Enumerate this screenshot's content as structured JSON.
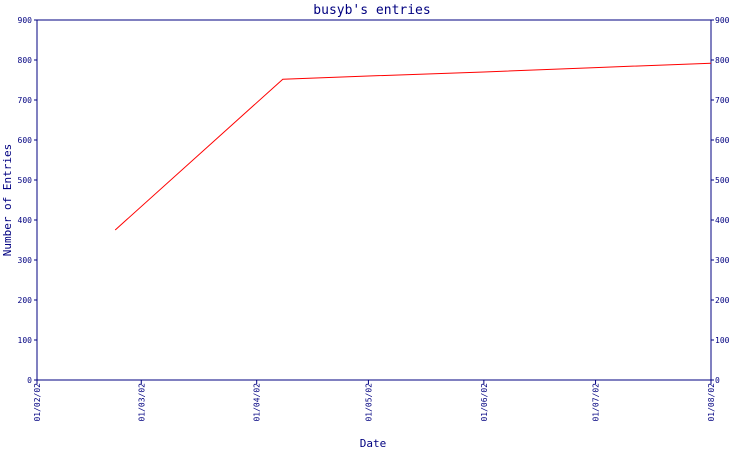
{
  "chart_data": {
    "type": "line",
    "title": "busyb's entries",
    "xlabel": "Date",
    "ylabel": "Number of Entries",
    "ylim": [
      0,
      900
    ],
    "yticks": [
      0,
      100,
      200,
      300,
      400,
      500,
      600,
      700,
      800,
      900
    ],
    "xlim": [
      "2002-02-01",
      "2002-08-01"
    ],
    "xticks": [
      {
        "date": "2002-02-01",
        "label": "01/02/02"
      },
      {
        "date": "2002-03-01",
        "label": "01/03/02"
      },
      {
        "date": "2002-04-01",
        "label": "01/04/02"
      },
      {
        "date": "2002-05-01",
        "label": "01/05/02"
      },
      {
        "date": "2002-06-01",
        "label": "01/06/02"
      },
      {
        "date": "2002-07-01",
        "label": "01/07/02"
      },
      {
        "date": "2002-08-01",
        "label": "01/08/02"
      }
    ],
    "grid": false,
    "right_axis": true,
    "series": [
      {
        "color": "#ff0000",
        "points": [
          {
            "x": "2002-02-22",
            "y": 375
          },
          {
            "x": "2002-04-08",
            "y": 752
          },
          {
            "x": "2002-05-01",
            "y": 760
          },
          {
            "x": "2002-06-01",
            "y": 770
          },
          {
            "x": "2002-07-01",
            "y": 781
          },
          {
            "x": "2002-08-01",
            "y": 792
          }
        ]
      }
    ],
    "colors": {
      "axis": "#000080",
      "text": "#000080",
      "background": "#ffffff"
    }
  }
}
